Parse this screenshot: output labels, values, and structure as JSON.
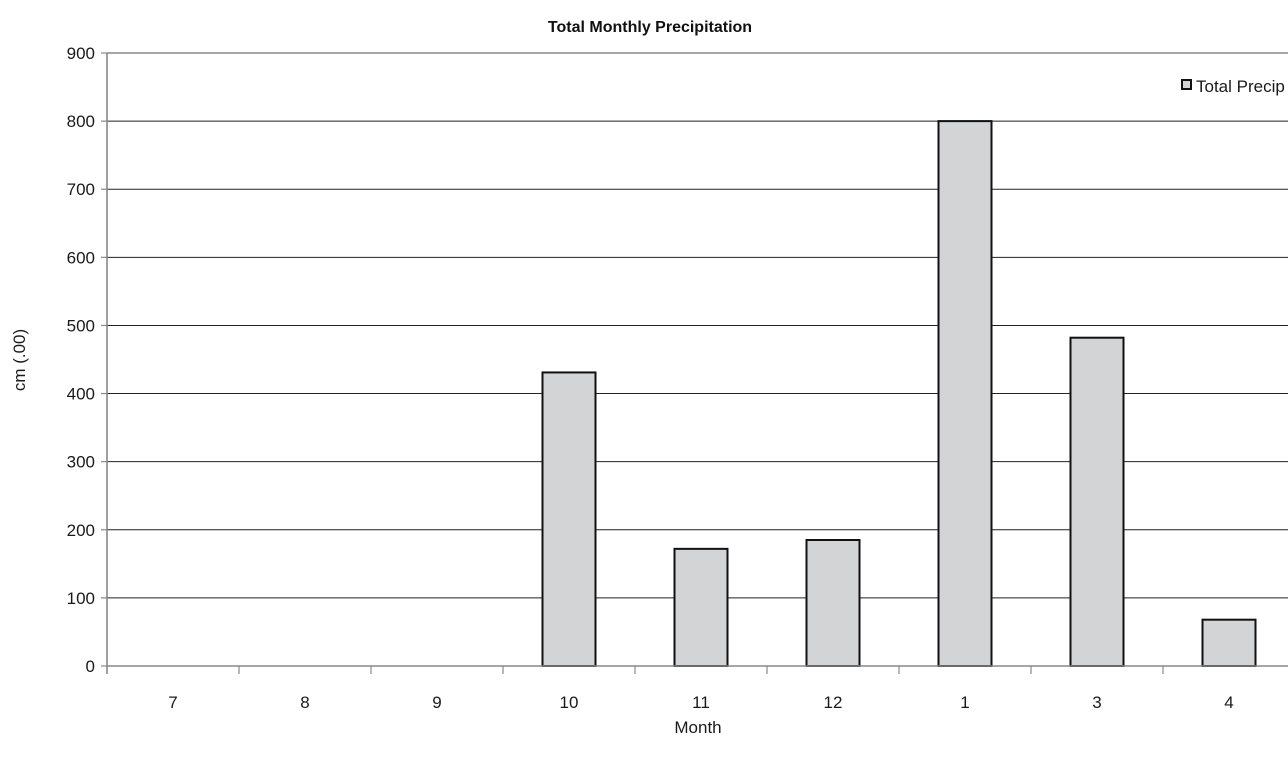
{
  "chart_data": {
    "type": "bar",
    "title": "Total Monthly Precipitation",
    "xlabel": "Month",
    "ylabel": "cm (.00)",
    "categories": [
      "7",
      "8",
      "9",
      "10",
      "11",
      "12",
      "1",
      "3",
      "4"
    ],
    "series": [
      {
        "name": "Total Precip",
        "values": [
          0,
          0,
          0,
          431,
          172,
          185,
          800,
          482,
          68
        ]
      }
    ],
    "ylim": [
      0,
      900
    ],
    "yticks": [
      0,
      100,
      200,
      300,
      400,
      500,
      600,
      700,
      800,
      900
    ],
    "grid": true,
    "legend_position": "top-right",
    "colors": {
      "bar_fill": "#d3d4d6",
      "bar_stroke": "#111111",
      "grid": "#222222",
      "axis": "#888888"
    }
  }
}
